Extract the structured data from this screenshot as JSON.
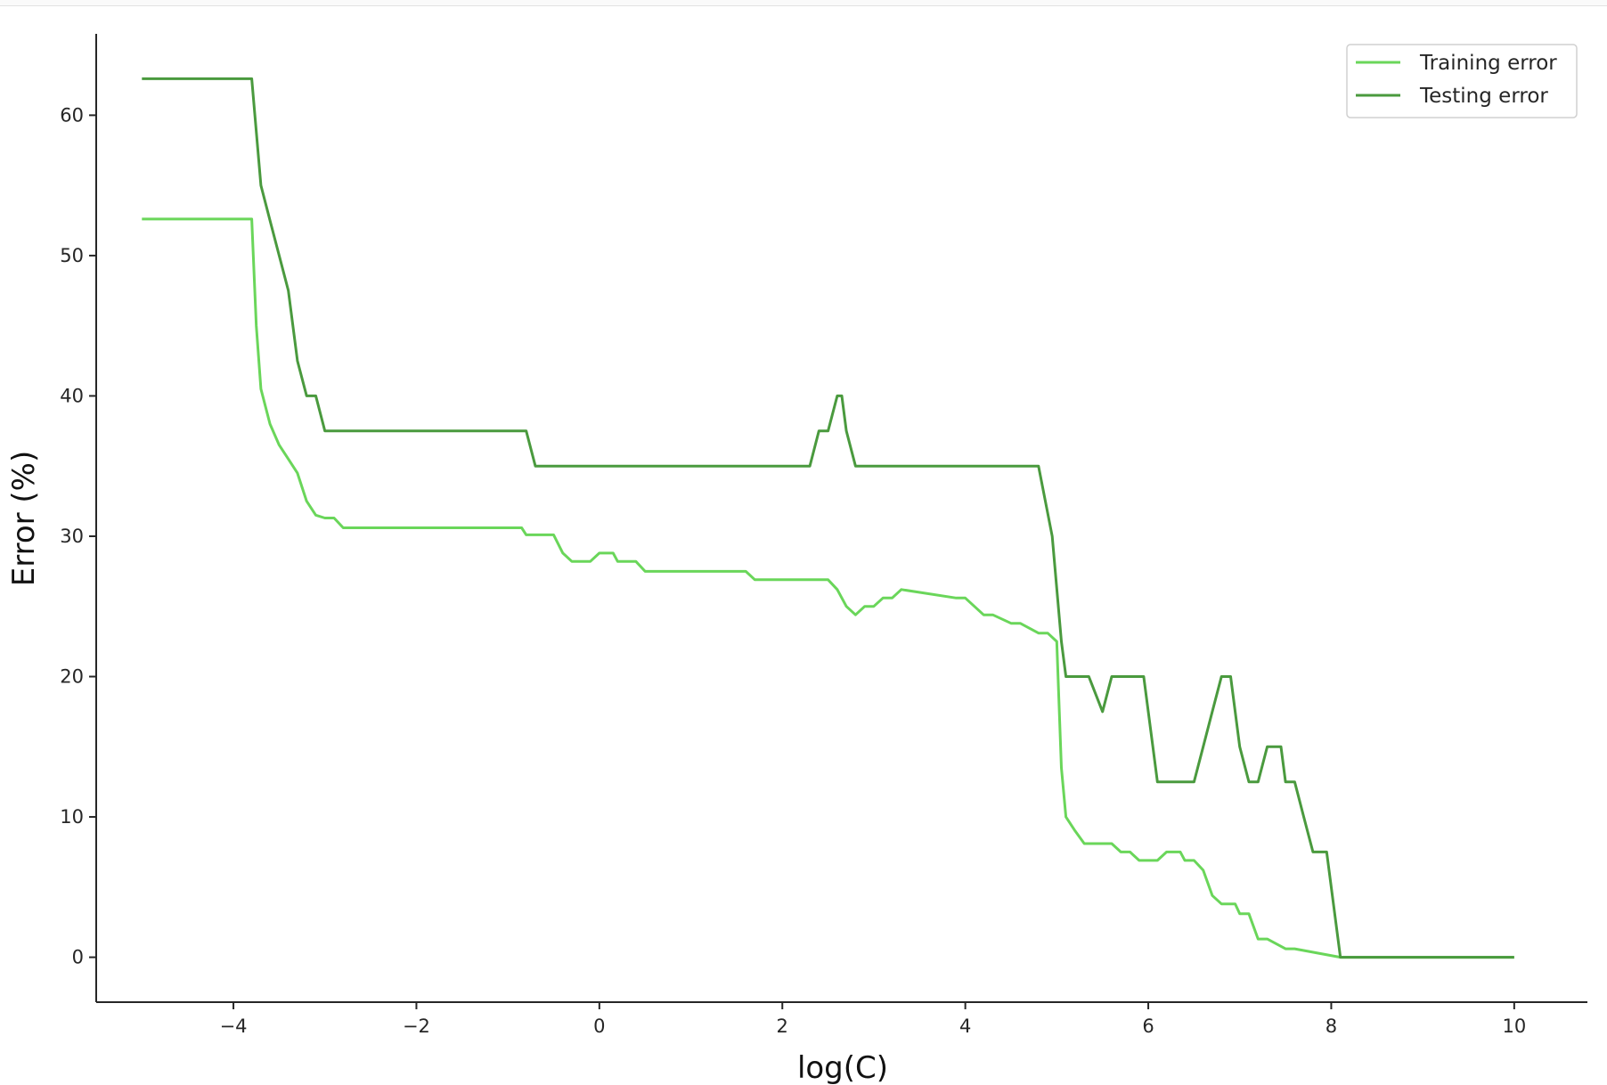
{
  "chart_data": {
    "type": "line",
    "title": "",
    "xlabel": "log(C)",
    "ylabel": "Error (%)",
    "xlim": [
      -5.5,
      10.8
    ],
    "ylim": [
      -3.2,
      65.8
    ],
    "xticks": [
      -4,
      -2,
      0,
      2,
      4,
      6,
      8,
      10
    ],
    "xtick_labels": [
      "−4",
      "−2",
      "0",
      "2",
      "4",
      "6",
      "8",
      "10"
    ],
    "yticks": [
      0,
      10,
      20,
      30,
      40,
      50,
      60
    ],
    "ytick_labels": [
      "0",
      "10",
      "20",
      "30",
      "40",
      "50",
      "60"
    ],
    "grid": false,
    "legend_position": "top-right",
    "series": [
      {
        "name": "Training error",
        "color": "#6ad65a",
        "x": [
          -5,
          -3.8,
          -3.75,
          -3.7,
          -3.6,
          -3.5,
          -3.4,
          -3.3,
          -3.2,
          -3.1,
          -3.0,
          -2.9,
          -2.8,
          -0.85,
          -0.8,
          -0.5,
          -0.4,
          -0.3,
          -0.1,
          0.0,
          0.15,
          0.2,
          0.4,
          0.5,
          1.6,
          1.7,
          2.5,
          2.6,
          2.7,
          2.8,
          2.9,
          3.0,
          3.1,
          3.2,
          3.3,
          3.9,
          4.0,
          4.2,
          4.3,
          4.5,
          4.6,
          4.8,
          4.9,
          5.0,
          5.05,
          5.1,
          5.2,
          5.3,
          5.6,
          5.7,
          5.8,
          5.9,
          6.1,
          6.2,
          6.35,
          6.4,
          6.5,
          6.6,
          6.7,
          6.8,
          6.95,
          7.0,
          7.1,
          7.2,
          7.3,
          7.5,
          7.6,
          8.1,
          10.0
        ],
        "values": [
          52.6,
          52.6,
          45,
          40.5,
          38,
          36.5,
          35.5,
          34.5,
          32.5,
          31.5,
          31.3,
          31.3,
          30.6,
          30.6,
          30.1,
          30.1,
          28.8,
          28.2,
          28.2,
          28.8,
          28.8,
          28.2,
          28.2,
          27.5,
          27.5,
          26.9,
          26.9,
          26.2,
          25,
          24.4,
          25,
          25,
          25.6,
          25.6,
          26.2,
          25.6,
          25.6,
          24.4,
          24.4,
          23.8,
          23.8,
          23.1,
          23.1,
          22.5,
          13.5,
          10,
          9,
          8.1,
          8.1,
          7.5,
          7.5,
          6.9,
          6.9,
          7.5,
          7.5,
          6.9,
          6.9,
          6.2,
          4.4,
          3.8,
          3.8,
          3.1,
          3.1,
          1.3,
          1.3,
          0.6,
          0.6,
          0.0,
          0.0
        ]
      },
      {
        "name": "Testing error",
        "color": "#4a9a3e",
        "x": [
          -5,
          -3.8,
          -3.7,
          -3.6,
          -3.5,
          -3.4,
          -3.3,
          -3.2,
          -3.1,
          -3.0,
          -0.8,
          -0.7,
          2.3,
          2.4,
          2.5,
          2.6,
          2.65,
          2.7,
          2.8,
          4.8,
          4.95,
          5.05,
          5.1,
          5.2,
          5.35,
          5.5,
          5.6,
          5.7,
          5.95,
          6.05,
          6.1,
          6.5,
          6.6,
          6.7,
          6.8,
          6.9,
          7.0,
          7.1,
          7.2,
          7.3,
          7.45,
          7.5,
          7.6,
          7.7,
          7.8,
          7.95,
          8.1,
          10.0
        ],
        "values": [
          62.6,
          62.6,
          55,
          52.5,
          50,
          47.5,
          42.5,
          40,
          40,
          37.5,
          37.5,
          35,
          35,
          37.5,
          37.5,
          40,
          40,
          37.5,
          35,
          35,
          30,
          22.5,
          20,
          20,
          20,
          17.5,
          20,
          20,
          20,
          15,
          12.5,
          12.5,
          15,
          17.5,
          20,
          20,
          15,
          12.5,
          12.5,
          15,
          15,
          12.5,
          12.5,
          10,
          7.5,
          7.5,
          0,
          0
        ]
      }
    ]
  }
}
